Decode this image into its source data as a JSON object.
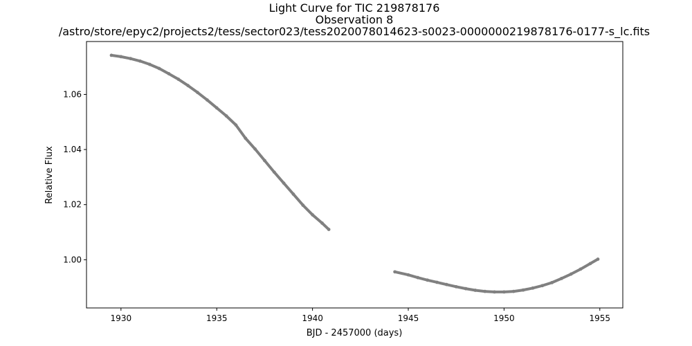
{
  "chart_data": {
    "type": "scatter",
    "title_lines": [
      "Light Curve for TIC 219878176",
      "Observation 8",
      "/astro/store/epyc2/projects2/tess/sector023/tess2020078014623-s0023-0000000219878176-0177-s_lc.fits"
    ],
    "xlabel": "BJD - 2457000 (days)",
    "ylabel": "Relative Flux",
    "xlim": [
      1928.2,
      1956.2
    ],
    "ylim": [
      0.9825,
      1.0792
    ],
    "x_ticks": [
      1930,
      1935,
      1940,
      1945,
      1950,
      1955
    ],
    "x_tick_labels": [
      "1930",
      "1935",
      "1940",
      "1945",
      "1950",
      "1955"
    ],
    "y_ticks": [
      1.0,
      1.02,
      1.04,
      1.06
    ],
    "y_tick_labels": [
      "1.00",
      "1.02",
      "1.04",
      "1.06"
    ],
    "grid": false,
    "legend": "none",
    "marker_color": "#808080",
    "series": [
      {
        "x": [
          1929.5,
          1930.0,
          1930.5,
          1931.0,
          1931.5,
          1932.0,
          1932.5,
          1933.0,
          1933.5,
          1934.0,
          1934.5,
          1935.0,
          1935.5,
          1936.0,
          1936.5,
          1937.0,
          1937.5,
          1938.0,
          1938.5,
          1939.0,
          1939.5,
          1940.0,
          1940.5,
          1940.85
        ],
        "y": [
          1.0742,
          1.0737,
          1.073,
          1.0721,
          1.0709,
          1.0694,
          1.0675,
          1.0655,
          1.0632,
          1.0607,
          1.058,
          1.0551,
          1.0522,
          1.0489,
          1.0441,
          1.0402,
          1.036,
          1.0318,
          1.0278,
          1.0238,
          1.0198,
          1.0163,
          1.0133,
          1.011
        ]
      },
      {
        "x": [
          1944.3,
          1945.0,
          1945.5,
          1946.0,
          1946.5,
          1947.0,
          1947.5,
          1948.0,
          1948.5,
          1949.0,
          1949.5,
          1950.0,
          1950.5,
          1951.0,
          1951.5,
          1952.0,
          1952.5,
          1953.0,
          1953.5,
          1954.0,
          1954.5,
          1954.9
        ],
        "y": [
          0.9956,
          0.9945,
          0.9935,
          0.9926,
          0.9918,
          0.991,
          0.9902,
          0.9895,
          0.9889,
          0.9885,
          0.9883,
          0.9883,
          0.9885,
          0.989,
          0.9897,
          0.9906,
          0.9917,
          0.9932,
          0.9948,
          0.9966,
          0.9986,
          1.0002
        ]
      }
    ]
  }
}
